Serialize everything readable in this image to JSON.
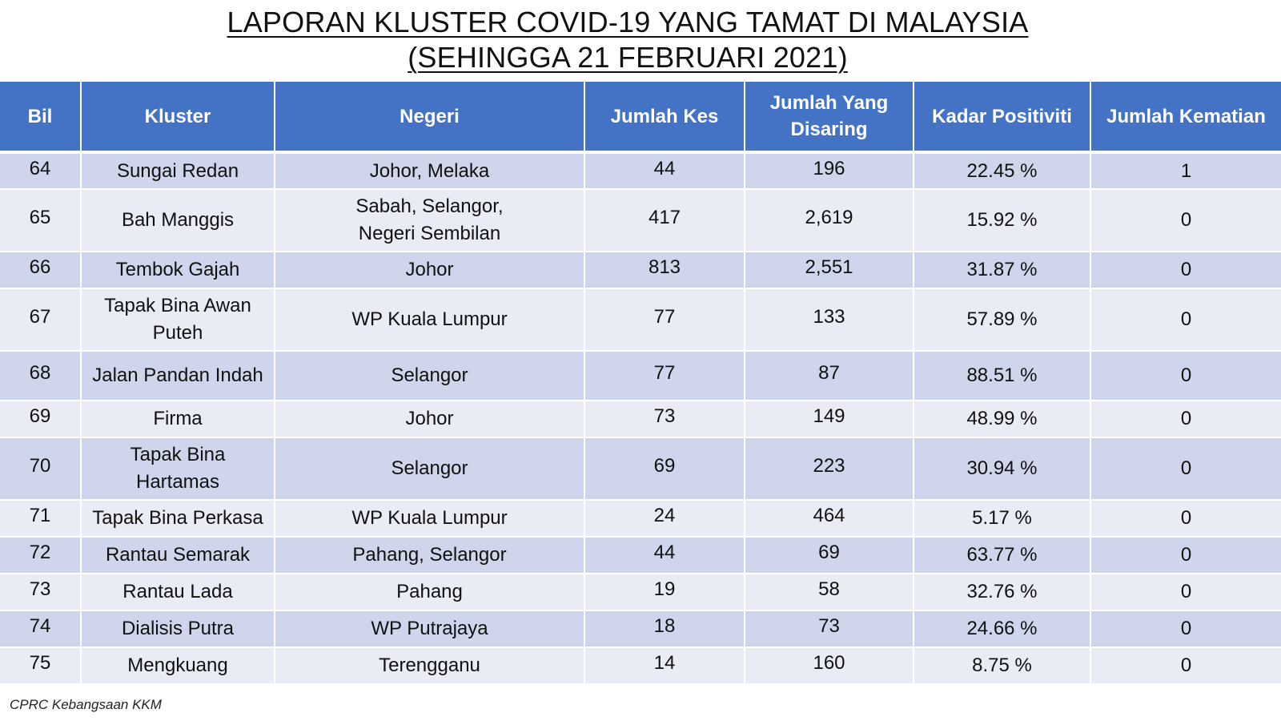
{
  "title": {
    "line1": "LAPORAN KLUSTER COVID-19 YANG TAMAT DI MALAYSIA",
    "line2": "(SEHINGGA  21 FEBRUARI 2021)"
  },
  "table": {
    "headers": [
      "Bil",
      "Kluster",
      "Negeri",
      "Jumlah Kes",
      "Jumlah Yang Disaring",
      "Kadar Positiviti",
      "Jumlah Kematian"
    ],
    "rows": [
      [
        "64",
        "Sungai Redan",
        "Johor, Melaka",
        "44",
        "196",
        "22.45 %",
        "1"
      ],
      [
        "65",
        "Bah Manggis",
        "Sabah, Selangor, Negeri Sembilan",
        "417",
        "2,619",
        "15.92 %",
        "0"
      ],
      [
        "66",
        "Tembok Gajah",
        "Johor",
        "813",
        "2,551",
        "31.87 %",
        "0"
      ],
      [
        "67",
        "Tapak Bina Awan Puteh",
        "WP Kuala Lumpur",
        "77",
        "133",
        "57.89 %",
        "0"
      ],
      [
        "68",
        "Jalan Pandan Indah",
        "Selangor",
        "77",
        "87",
        "88.51 %",
        "0"
      ],
      [
        "69",
        "Firma",
        "Johor",
        "73",
        "149",
        "48.99 %",
        "0"
      ],
      [
        "70",
        "Tapak Bina Hartamas",
        "Selangor",
        "69",
        "223",
        "30.94 %",
        "0"
      ],
      [
        "71",
        "Tapak Bina Perkasa",
        "WP Kuala Lumpur",
        "24",
        "464",
        "5.17 %",
        "0"
      ],
      [
        "72",
        "Rantau Semarak",
        "Pahang, Selangor",
        "44",
        "69",
        "63.77 %",
        "0"
      ],
      [
        "73",
        "Rantau Lada",
        "Pahang",
        "19",
        "58",
        "32.76 %",
        "0"
      ],
      [
        "74",
        "Dialisis Putra",
        "WP Putrajaya",
        "18",
        "73",
        "24.66 %",
        "0"
      ],
      [
        "75",
        "Mengkuang",
        "Terengganu",
        "14",
        "160",
        "8.75 %",
        "0"
      ]
    ]
  },
  "footer": {
    "source": "CPRC Kebangsaan KKM"
  },
  "colors": {
    "header_bg": "#4472c4",
    "band_dark": "#cfd5ea",
    "band_light": "#e9ebf5"
  }
}
